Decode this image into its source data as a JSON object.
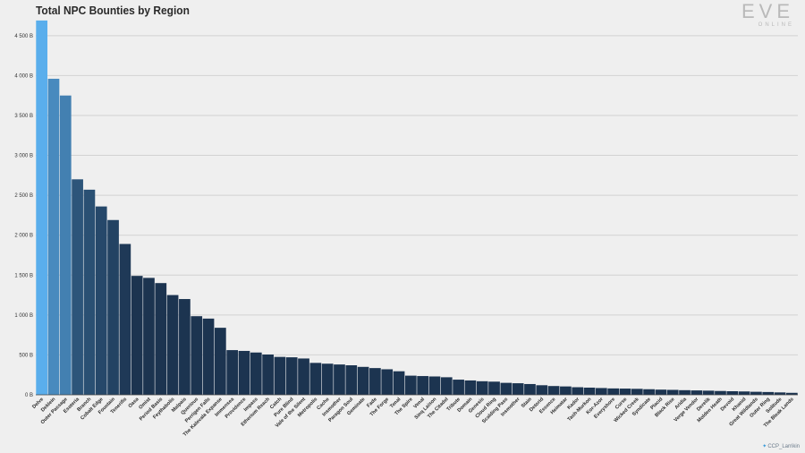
{
  "header": {
    "title": "Total NPC Bounties by Region",
    "logo_main": "EVE",
    "logo_sub": "ONLINE"
  },
  "footer": {
    "credit": "CCP_Larrikin"
  },
  "colors": {
    "background": "#efefef",
    "grid": "#d2d2d2",
    "bar_light": "#5aaeec",
    "bar_dark": "#1c3450",
    "axis": "#444444"
  },
  "chart_data": {
    "type": "bar",
    "title": "Total NPC Bounties by Region",
    "xlabel": "",
    "ylabel": "",
    "ylim": [
      0,
      4700
    ],
    "yticks": [
      0,
      500,
      1000,
      1500,
      2000,
      2500,
      3000,
      3500,
      4000,
      4500
    ],
    "ytick_labels": [
      "0 B",
      "500 B",
      "1 000 B",
      "1 500 B",
      "2 000 B",
      "2 500 B",
      "3 000 B",
      "3 500 B",
      "4 000 B",
      "4 500 B"
    ],
    "grid": true,
    "categories": [
      "Delve",
      "Deklein",
      "Outer Passage",
      "Esoteria",
      "Branch",
      "Cobalt Edge",
      "Fountain",
      "Tenerifis",
      "Oasa",
      "Omist",
      "Period Basis",
      "Feythabolis",
      "Malpais",
      "Querious",
      "Perrigen Falls",
      "The Kalevala Expanse",
      "Immensea",
      "Providence",
      "Impass",
      "Etherium Reach",
      "Catch",
      "Pure Blind",
      "Vale of the Silent",
      "Metropolis",
      "Cache",
      "Insmother",
      "Paragon Soul",
      "Geminate",
      "Fade",
      "The Forge",
      "Tenal",
      "The Spire",
      "Venal",
      "Sinq Laison",
      "The Citadel",
      "Tribute",
      "Domain",
      "Genesis",
      "Cloud Ring",
      "Scalding Pass",
      "Insmother",
      "Stain",
      "Detorid",
      "Essence",
      "Heimatar",
      "Kador",
      "Tash-Murkon",
      "Kor-Azor",
      "Everyshore",
      "Curse",
      "Wicked Creek",
      "Syndicate",
      "Placid",
      "Black Rise",
      "Aridia",
      "Verge Vendor",
      "Derelik",
      "Molden Heath",
      "Devoid",
      "Khanid",
      "Great Wildlands",
      "Outer Ring",
      "Solitude",
      "The Bleak Lands"
    ],
    "values": [
      4690,
      3960,
      3750,
      2700,
      2570,
      2360,
      2190,
      1890,
      1490,
      1465,
      1400,
      1250,
      1200,
      985,
      955,
      840,
      560,
      550,
      530,
      505,
      475,
      470,
      455,
      400,
      390,
      380,
      370,
      350,
      335,
      320,
      295,
      240,
      235,
      230,
      220,
      190,
      180,
      170,
      165,
      150,
      145,
      135,
      120,
      110,
      105,
      95,
      90,
      85,
      80,
      78,
      75,
      70,
      65,
      62,
      58,
      55,
      52,
      48,
      45,
      42,
      38,
      35,
      30,
      25
    ]
  }
}
